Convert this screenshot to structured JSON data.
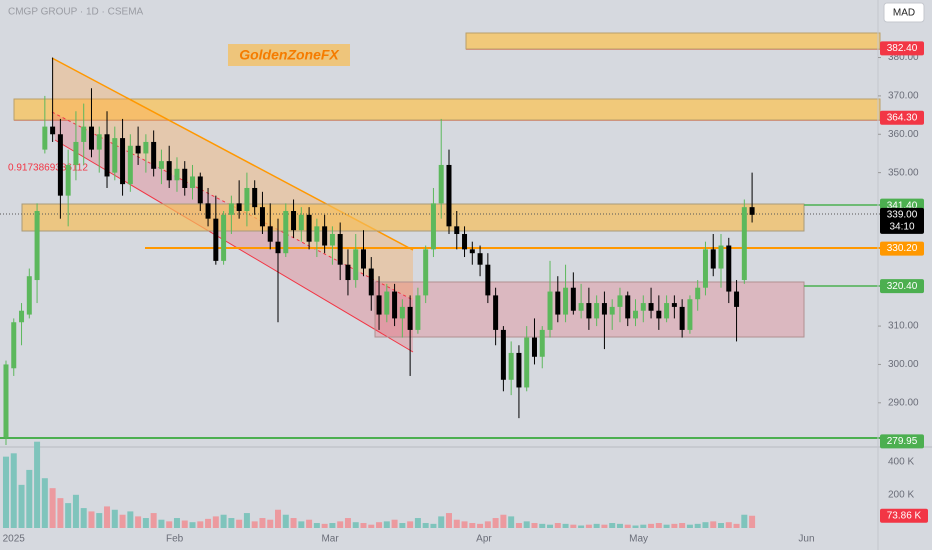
{
  "chart_data": {
    "type": "candlestick",
    "title": "CMGP GROUP · 1D · CSEMA",
    "currency": "MAD",
    "watermark": "GoldenZoneFX",
    "annotation": "0.9173869336112",
    "open": [
      281,
      299,
      311,
      313,
      322,
      356,
      362,
      360,
      344,
      352,
      358,
      362,
      356,
      360,
      350,
      359,
      347,
      357,
      355,
      358,
      351,
      353,
      348,
      351,
      346,
      349,
      342,
      338,
      327,
      339,
      342,
      340,
      346,
      341,
      336,
      332,
      329,
      340,
      335,
      339,
      332,
      336,
      331,
      334,
      326,
      322,
      330,
      325,
      318,
      313,
      319,
      312,
      315,
      309,
      318,
      330,
      342,
      352,
      336,
      334,
      330,
      329,
      326,
      318,
      309,
      296,
      303,
      294,
      307,
      302,
      309,
      319,
      313,
      320,
      314,
      316,
      312,
      316,
      313,
      315,
      318,
      312,
      314,
      316,
      314,
      312,
      316,
      315,
      309,
      317,
      320,
      330,
      325,
      331,
      319,
      322,
      341
    ],
    "high": [
      301,
      312,
      316,
      325,
      342,
      370,
      380,
      364,
      356,
      366,
      368,
      372,
      362,
      366,
      362,
      364,
      360,
      362,
      360,
      361,
      356,
      357,
      354,
      353,
      352,
      350,
      346,
      344,
      340,
      344,
      348,
      350,
      348,
      345,
      342,
      338,
      342,
      343,
      341,
      341,
      338,
      339,
      336,
      337,
      330,
      334,
      335,
      328,
      323,
      321,
      321,
      317,
      318,
      320,
      331,
      346,
      364,
      356,
      340,
      336,
      332,
      331,
      329,
      320,
      310,
      306,
      305,
      310,
      312,
      310,
      327,
      323,
      326,
      324,
      321,
      320,
      318,
      319,
      317,
      320,
      319,
      317,
      318,
      320,
      318,
      318,
      318,
      317,
      318,
      322,
      332,
      334,
      334,
      333,
      322,
      343,
      350
    ],
    "low": [
      279,
      297,
      305,
      312,
      316,
      355,
      358,
      338,
      336,
      348,
      352,
      354,
      350,
      346,
      348,
      344,
      345,
      352,
      350,
      349,
      347,
      346,
      345,
      344,
      343,
      340,
      336,
      326,
      326,
      334,
      338,
      336,
      339,
      334,
      330,
      311,
      328,
      333,
      332,
      330,
      328,
      329,
      326,
      322,
      318,
      320,
      323,
      314,
      309,
      311,
      310,
      307,
      297,
      308,
      316,
      328,
      338,
      334,
      330,
      328,
      326,
      323,
      316,
      305,
      293,
      292,
      286,
      293,
      300,
      299,
      307,
      311,
      311,
      313,
      312,
      309,
      310,
      304,
      309,
      311,
      310,
      310,
      311,
      312,
      309,
      311,
      312,
      307,
      308,
      314,
      318,
      323,
      320,
      316,
      306,
      321,
      337
    ],
    "close": [
      300,
      311,
      314,
      323,
      340,
      362,
      360,
      344,
      352,
      358,
      362,
      356,
      360,
      349,
      359,
      347,
      357,
      355,
      358,
      351,
      353,
      348,
      351,
      346,
      349,
      342,
      338,
      327,
      339,
      342,
      340,
      346,
      341,
      336,
      332,
      329,
      340,
      335,
      339,
      332,
      336,
      331,
      334,
      326,
      322,
      330,
      325,
      318,
      313,
      319,
      312,
      315,
      309,
      318,
      330,
      342,
      352,
      336,
      334,
      330,
      329,
      326,
      318,
      309,
      296,
      303,
      294,
      307,
      302,
      309,
      319,
      313,
      320,
      314,
      316,
      312,
      316,
      313,
      315,
      318,
      312,
      314,
      316,
      314,
      312,
      316,
      315,
      309,
      317,
      320,
      330,
      325,
      331,
      319,
      315,
      341,
      339
    ],
    "volume": [
      430000,
      450000,
      260000,
      350000,
      520000,
      300000,
      240000,
      180000,
      150000,
      200000,
      120000,
      100000,
      90000,
      130000,
      110000,
      80000,
      100000,
      70000,
      60000,
      90000,
      50000,
      40000,
      60000,
      45000,
      35000,
      40000,
      55000,
      70000,
      80000,
      60000,
      50000,
      90000,
      40000,
      60000,
      50000,
      110000,
      80000,
      60000,
      40000,
      50000,
      30000,
      25000,
      30000,
      40000,
      60000,
      35000,
      30000,
      20000,
      35000,
      40000,
      50000,
      30000,
      40000,
      60000,
      30000,
      25000,
      70000,
      90000,
      50000,
      40000,
      30000,
      25000,
      40000,
      60000,
      80000,
      70000,
      30000,
      40000,
      30000,
      25000,
      20000,
      30000,
      25000,
      20000,
      15000,
      20000,
      25000,
      20000,
      30000,
      25000,
      20000,
      15000,
      20000,
      25000,
      30000,
      20000,
      25000,
      30000,
      20000,
      25000,
      35000,
      40000,
      30000,
      35000,
      25000,
      80000,
      73860
    ],
    "volume_last_label": "73.86 K",
    "up_color": "#5cb85c",
    "down_color": "#000000",
    "volume_up_color": "#7fc4bc",
    "volume_down_color": "#ec9a9f",
    "ylim": [
      279,
      395
    ],
    "yticks": [
      {
        "value": 380,
        "label": "380.00"
      },
      {
        "value": 370,
        "label": "370.00"
      },
      {
        "value": 360,
        "label": "360.00"
      },
      {
        "value": 350,
        "label": "350.00"
      },
      {
        "value": 310,
        "label": "310.00"
      },
      {
        "value": 300,
        "label": "300.00"
      },
      {
        "value": 290,
        "label": "290.00"
      }
    ],
    "volume_ylim": [
      0,
      470000
    ],
    "volume_ticks": [
      {
        "value": 400000,
        "label": "400 K"
      },
      {
        "value": 200000,
        "label": "200 K"
      }
    ],
    "xlim": [
      -0.77,
      112.2
    ],
    "xticks": [
      {
        "value": 1,
        "label": "2025"
      },
      {
        "value": 21.7,
        "label": "Feb"
      },
      {
        "value": 41.7,
        "label": "Mar"
      },
      {
        "value": 61.5,
        "label": "Apr"
      },
      {
        "value": 81.4,
        "label": "May"
      },
      {
        "value": 103,
        "label": "Jun"
      }
    ],
    "levels": [
      {
        "value": 382.4,
        "label": "382.40",
        "color": "#f23645"
      },
      {
        "value": 364.3,
        "label": "364.30",
        "color": "#f23645"
      },
      {
        "value": 341.4,
        "label": "341.40",
        "color": "#4caf50"
      },
      {
        "value": 330.2,
        "label": "330.20",
        "color": "#ff9800"
      },
      {
        "value": 320.4,
        "label": "320.40",
        "color": "#4caf50"
      },
      {
        "value": 279.95,
        "label": "279.95",
        "color": "#4caf50"
      }
    ],
    "last_price": {
      "value": 339,
      "label": "339.00",
      "countdown": "34:10"
    }
  }
}
